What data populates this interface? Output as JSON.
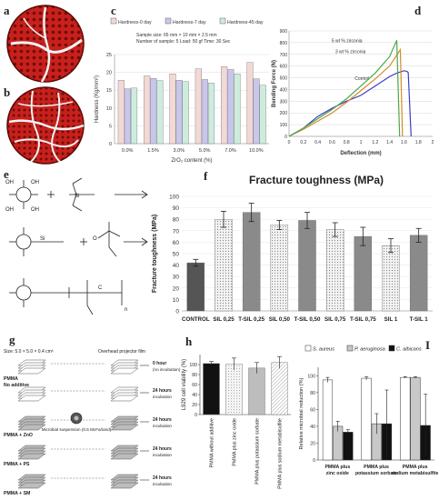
{
  "panel_labels": {
    "a": "a",
    "b": "b",
    "c": "c",
    "d": "d",
    "e": "e",
    "f": "f",
    "g": "g",
    "h": "h",
    "I": "I"
  },
  "colors": {
    "disc_red": "#c8201c",
    "dark_red": "#7a0d0b",
    "crack": "#f2f2f2"
  },
  "chart_data": [
    {
      "id": "c",
      "type": "bar",
      "title": "",
      "categories": [
        "0.0%",
        "1.5%",
        "3.0%",
        "5.0%",
        "7.0%",
        "10.0%"
      ],
      "series": [
        {
          "name": "Hardness-0 day",
          "color": "#f2d9d6",
          "values": [
            17.8,
            19.0,
            19.6,
            21.0,
            21.6,
            22.8
          ]
        },
        {
          "name": "Hardness-7 day",
          "color": "#c9c6ec",
          "values": [
            15.4,
            18.3,
            17.8,
            18.0,
            20.8,
            18.2
          ]
        },
        {
          "name": "Hardness-45 day",
          "color": "#cdecdd",
          "values": [
            15.6,
            17.7,
            17.4,
            17.0,
            19.6,
            16.4
          ]
        }
      ],
      "annotation": [
        "Sample size: 65 mm × 10 mm × 2.5 mm",
        "Number of sample: 5  Load: 50 gf Time: 30 Sec"
      ],
      "xlabel": "ZrO₂ content (%)",
      "ylabel": "Hardness (Kg/mm²)",
      "ylim": [
        0,
        25
      ],
      "yticks": [
        "0",
        "5",
        "10",
        "15",
        "20",
        "25"
      ],
      "grid": true,
      "legend": "top"
    },
    {
      "id": "d",
      "type": "line",
      "xlabel": "Deflection (mm)",
      "ylabel": "Bending Force (N)",
      "xlim": [
        0,
        2
      ],
      "ylim": [
        0,
        900
      ],
      "xticks": [
        "0",
        "0.2",
        "0.4",
        "0.6",
        "0.8",
        "1",
        "1.2",
        "1.4",
        "1.6",
        "1.8",
        "2"
      ],
      "yticks": [
        "0",
        "100",
        "200",
        "300",
        "400",
        "500",
        "600",
        "700",
        "800",
        "900"
      ],
      "series": [
        {
          "name": "Control",
          "color": "#3b3fc4",
          "x": [
            0,
            0.2,
            0.4,
            0.6,
            0.8,
            1.0,
            1.2,
            1.4,
            1.5,
            1.6,
            1.64,
            1.66,
            1.7
          ],
          "y": [
            0,
            70,
            170,
            240,
            300,
            350,
            430,
            510,
            540,
            560,
            555,
            545,
            0
          ]
        },
        {
          "name": "3 wt % zirconia",
          "color": "#d88a2a",
          "x": [
            0,
            0.2,
            0.4,
            0.6,
            0.8,
            1.0,
            1.2,
            1.4,
            1.55,
            1.58
          ],
          "y": [
            0,
            60,
            130,
            200,
            290,
            390,
            490,
            600,
            740,
            0
          ]
        },
        {
          "name": "5 wt % zirconia",
          "color": "#4aa84a",
          "x": [
            0,
            0.2,
            0.4,
            0.6,
            0.8,
            1.0,
            1.2,
            1.4,
            1.5,
            1.54
          ],
          "y": [
            0,
            70,
            150,
            230,
            320,
            430,
            540,
            680,
            820,
            0
          ]
        }
      ]
    },
    {
      "id": "f",
      "type": "bar",
      "title": "Fracture toughness (MPa)",
      "categories": [
        "CONTROL",
        "SIL 0,25",
        "T-SIL 0,25",
        "SIL 0,50",
        "T-SIL 0,50",
        "SIL 0,75",
        "T-SIL 0,75",
        "SIL 1",
        "T-SIL 1"
      ],
      "values": [
        42,
        80,
        86,
        75,
        79,
        71,
        65,
        57,
        66
      ],
      "errors": [
        3,
        7,
        8,
        4,
        7,
        6,
        8,
        6,
        6
      ],
      "ylabel": "Fracture toughness (MPa)",
      "ylim": [
        0,
        100
      ],
      "yticks": [
        "0",
        "10",
        "20",
        "30",
        "40",
        "50",
        "60",
        "70",
        "80",
        "90",
        "100"
      ]
    },
    {
      "id": "h",
      "type": "bar",
      "categories": [
        "PMMA without additive",
        "PMMA plus zinc oxide",
        "PMMA plus potassium sorbate",
        "PMMA plus sodium metabisulfite"
      ],
      "values": [
        102,
        101,
        93,
        104
      ],
      "errors": [
        4,
        12,
        11,
        12
      ],
      "ylabel": "L929 cell viability (%)",
      "ylim": [
        0,
        120
      ],
      "yticks": [
        "0",
        "20",
        "40",
        "60",
        "80",
        "100"
      ]
    },
    {
      "id": "I",
      "type": "bar",
      "categories": [
        "PMMA plus zinc oxide",
        "PMMA plus potassium sorbate",
        "PMMA plus sodium metabisulfite"
      ],
      "series": [
        {
          "name": "S. aureus",
          "color": "#ffffff",
          "values": [
            95,
            97,
            98
          ],
          "errors": [
            3,
            2,
            1
          ]
        },
        {
          "name": "P. aeruginosa",
          "color": "#c8c8c8",
          "values": [
            40,
            43,
            98
          ],
          "errors": [
            6,
            12,
            1
          ]
        },
        {
          "name": "C. albicans",
          "color": "#111111",
          "values": [
            33,
            43,
            41
          ],
          "errors": [
            3,
            40,
            37
          ]
        }
      ],
      "ylabel": "Relative microbial reduction (%)",
      "ylim": [
        0,
        110
      ],
      "yticks": [
        "0",
        "20",
        "40",
        "60",
        "80",
        "100"
      ],
      "legend": "top"
    }
  ],
  "diagram_e": {
    "labels": [
      "OH",
      "OH",
      "OH",
      "OH",
      "Si",
      "Si",
      "O",
      "C",
      "n"
    ]
  },
  "diagram_g": {
    "size_label": "Size: 5.0 × 5.0 × 0.4 cm³",
    "film_label": "Overhead projector film",
    "suspension_label": "Microbial suspension (0.5 McFarland)",
    "groups": [
      {
        "name": "PMMA\nNo additive",
        "line1": "PMMA",
        "line2": "No additive",
        "time": "0 hour",
        "note": "(no incubation)"
      },
      {
        "name": "",
        "line1": "",
        "line2": "",
        "time": "24 hours",
        "note": "incubation"
      },
      {
        "name": "PMMA + ZnO",
        "line1": "PMMA + ZnO",
        "line2": "",
        "time": "24 hours",
        "note": "incubation"
      },
      {
        "name": "PMMA + PS",
        "line1": "PMMA + PS",
        "line2": "",
        "time": "24 hours",
        "note": "incubation"
      },
      {
        "name": "PMMA + SM",
        "line1": "PMMA + SM",
        "line2": "",
        "time": "24 hours",
        "note": "incubation"
      }
    ]
  }
}
